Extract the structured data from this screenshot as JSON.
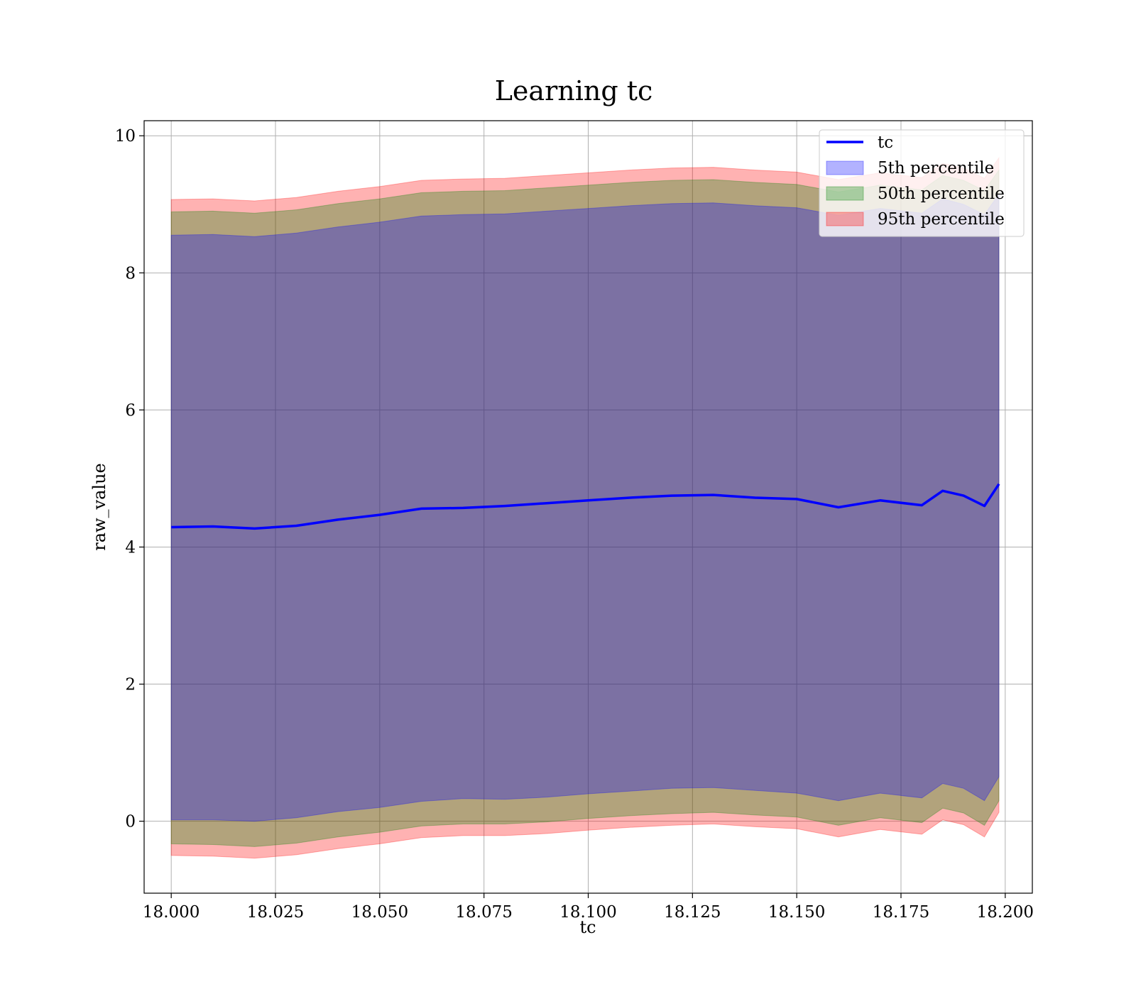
{
  "chart_data": {
    "type": "area",
    "title": "Learning tc",
    "xlabel": "tc",
    "ylabel": "raw_value",
    "xlim": [
      17.9935,
      18.2065
    ],
    "ylim": [
      -1.05,
      10.22
    ],
    "xticks": [
      18.0,
      18.025,
      18.05,
      18.075,
      18.1,
      18.125,
      18.15,
      18.175,
      18.2
    ],
    "xtick_labels": [
      "18.000",
      "18.025",
      "18.050",
      "18.075",
      "18.100",
      "18.125",
      "18.150",
      "18.175",
      "18.200"
    ],
    "yticks": [
      0,
      2,
      4,
      6,
      8,
      10
    ],
    "ytick_labels": [
      "0",
      "2",
      "4",
      "6",
      "8",
      "10"
    ],
    "grid": true,
    "legend_position": "top-right",
    "x": [
      18.0,
      18.01,
      18.02,
      18.03,
      18.04,
      18.05,
      18.06,
      18.07,
      18.08,
      18.09,
      18.1,
      18.11,
      18.12,
      18.13,
      18.14,
      18.15,
      18.16,
      18.17,
      18.18,
      18.185,
      18.19,
      18.195,
      18.1985
    ],
    "series": [
      {
        "name": "tc",
        "kind": "line",
        "color": "#0000ff",
        "values": [
          4.29,
          4.3,
          4.27,
          4.31,
          4.4,
          4.47,
          4.56,
          4.57,
          4.6,
          4.64,
          4.68,
          4.72,
          4.75,
          4.76,
          4.72,
          4.7,
          4.58,
          4.68,
          4.61,
          4.82,
          4.75,
          4.6,
          4.92
        ]
      },
      {
        "name": "5th percentile",
        "kind": "band",
        "color": "#0000ff",
        "lower": [
          0.02,
          0.02,
          0.0,
          0.05,
          0.14,
          0.2,
          0.29,
          0.33,
          0.32,
          0.35,
          0.4,
          0.44,
          0.48,
          0.49,
          0.45,
          0.41,
          0.3,
          0.41,
          0.34,
          0.55,
          0.48,
          0.3,
          0.65
        ],
        "upper": [
          8.55,
          8.56,
          8.53,
          8.58,
          8.67,
          8.74,
          8.83,
          8.85,
          8.86,
          8.9,
          8.94,
          8.98,
          9.01,
          9.02,
          8.98,
          8.95,
          8.84,
          8.94,
          8.87,
          9.08,
          9.0,
          8.85,
          9.15
        ]
      },
      {
        "name": "50th percentile",
        "kind": "band",
        "color": "#008000",
        "lower": [
          -0.33,
          -0.34,
          -0.37,
          -0.32,
          -0.23,
          -0.16,
          -0.07,
          -0.04,
          -0.04,
          -0.01,
          0.04,
          0.08,
          0.11,
          0.13,
          0.09,
          0.06,
          -0.06,
          0.05,
          -0.02,
          0.19,
          0.12,
          -0.06,
          0.3
        ],
        "upper": [
          8.89,
          8.9,
          8.87,
          8.92,
          9.01,
          9.08,
          9.17,
          9.19,
          9.2,
          9.24,
          9.28,
          9.32,
          9.35,
          9.36,
          9.32,
          9.29,
          9.18,
          9.28,
          9.21,
          9.42,
          9.35,
          9.2,
          9.5
        ]
      },
      {
        "name": "95th percentile",
        "kind": "band",
        "color": "#ff0000",
        "lower": [
          -0.5,
          -0.51,
          -0.54,
          -0.49,
          -0.4,
          -0.33,
          -0.24,
          -0.21,
          -0.21,
          -0.18,
          -0.13,
          -0.09,
          -0.06,
          -0.04,
          -0.08,
          -0.11,
          -0.23,
          -0.12,
          -0.19,
          0.02,
          -0.05,
          -0.23,
          0.13
        ],
        "upper": [
          9.07,
          9.08,
          9.05,
          9.1,
          9.19,
          9.26,
          9.35,
          9.37,
          9.38,
          9.42,
          9.46,
          9.5,
          9.53,
          9.54,
          9.5,
          9.47,
          9.36,
          9.46,
          9.39,
          9.6,
          9.53,
          9.38,
          9.68
        ]
      }
    ]
  }
}
